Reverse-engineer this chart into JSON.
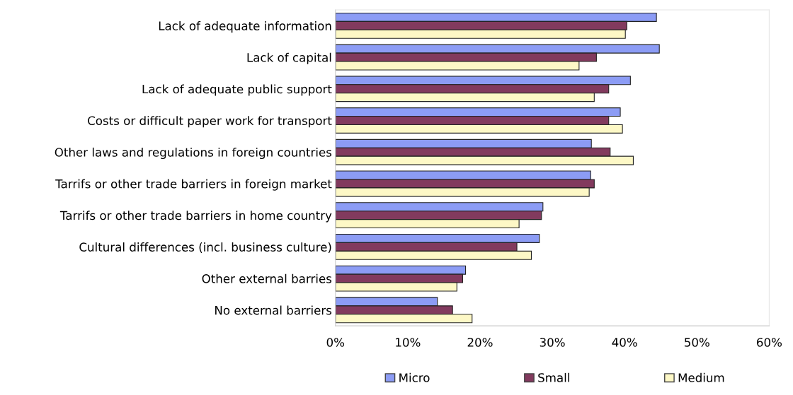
{
  "chart_data": {
    "type": "bar",
    "orientation": "horizontal",
    "legend": "bottom",
    "categories": [
      "Lack of adequate information",
      "Lack of capital",
      "Lack of adequate public support",
      "Costs or difficult paper work for transport",
      "Other laws and regulations in foreign countries",
      "Tarrifs or other trade barriers in foreign market",
      "Tarrifs or other trade barriers in home country",
      "Cultural differences (incl. business culture)",
      "Other external barries",
      "No external barriers"
    ],
    "series": [
      {
        "name": "Micro",
        "color": "#8c9cf5",
        "values": [
          44.4,
          44.8,
          40.8,
          39.4,
          35.4,
          35.3,
          28.7,
          28.2,
          18.0,
          14.1
        ]
      },
      {
        "name": "Small",
        "color": "#823a5e",
        "values": [
          40.3,
          36.1,
          37.8,
          37.8,
          38.0,
          35.8,
          28.5,
          25.1,
          17.6,
          16.2
        ]
      },
      {
        "name": "Medium",
        "color": "#fdf8c6",
        "values": [
          40.1,
          33.7,
          35.8,
          39.7,
          41.2,
          35.1,
          25.4,
          27.1,
          16.8,
          18.9
        ]
      }
    ],
    "xlim": [
      0,
      60
    ],
    "xticks": [
      {
        "value": 0,
        "label": "0%"
      },
      {
        "value": 10,
        "label": "10%"
      },
      {
        "value": 20,
        "label": "20%"
      },
      {
        "value": 30,
        "label": "30%"
      },
      {
        "value": 40,
        "label": "40%"
      },
      {
        "value": 50,
        "label": "50%"
      },
      {
        "value": 60,
        "label": "60%"
      }
    ]
  }
}
